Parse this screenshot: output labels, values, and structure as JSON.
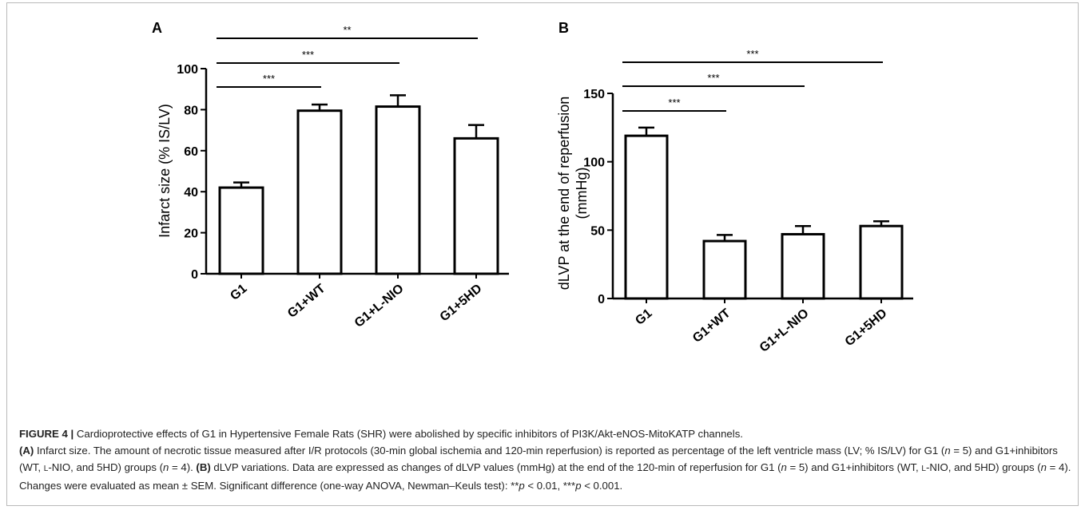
{
  "chart_data": [
    {
      "type": "bar",
      "panel": "A",
      "ylabel": "Infarct size (% IS/LV)",
      "categories": [
        "G1",
        "G1+WT",
        "G1+L-NIO",
        "G1+5HD"
      ],
      "values": [
        42,
        79.5,
        81.5,
        66
      ],
      "errors": [
        2.5,
        3,
        5.5,
        6.5
      ],
      "ylim": [
        0,
        100
      ],
      "yticks": [
        "0",
        "20",
        "40",
        "60",
        "80",
        "100"
      ],
      "significance": [
        "***",
        "***",
        "**"
      ]
    },
    {
      "type": "bar",
      "panel": "B",
      "ylabel": "dLVP at the end of reperfusion",
      "ylabel2": "(mmHg)",
      "categories": [
        "G1",
        "G1+WT",
        "G1+L-NIO",
        "G1+5HD"
      ],
      "values": [
        119,
        42,
        47,
        53
      ],
      "errors": [
        6,
        4.5,
        6,
        3.5
      ],
      "ylim": [
        0,
        150
      ],
      "yticks": [
        "0",
        "50",
        "100",
        "150"
      ],
      "significance": [
        "***",
        "***",
        "***"
      ]
    }
  ],
  "caption": {
    "figure_label": "FIGURE 4 |",
    "line1": " Cardioprotective effects of G1 in Hypertensive Female Rats (SHR) were abolished by specific inhibitors of PI3K/Akt-eNOS-MitoKATP channels.",
    "a_label": "(A)",
    "a_text1": " Infarct size. The amount of necrotic tissue measured after I/R protocols (30-min global ischemia and 120-min reperfusion) is reported as percentage of the left ventricle mass (LV; % IS/LV) for G1 (",
    "n": "n",
    "eq5": " = 5) and G1+inhibitors (WT, ",
    "l": "L",
    "lnio_rest": "-NIO, and 5HD) groups (",
    "eq4": " = 4). ",
    "b_label": "(B)",
    "b_text1": " dLVP variations. Data are expressed as changes of dLVP values (mmHg) at the end of the 120-min of reperfusion for G1 (",
    "b_text_end": " = 4). Changes were evaluated as mean ± SEM. Significant difference (one-way ANOVA, Newman–Keuls test): **",
    "p": "p",
    "p01": " < 0.01, ***",
    "p001": " < 0.001."
  }
}
